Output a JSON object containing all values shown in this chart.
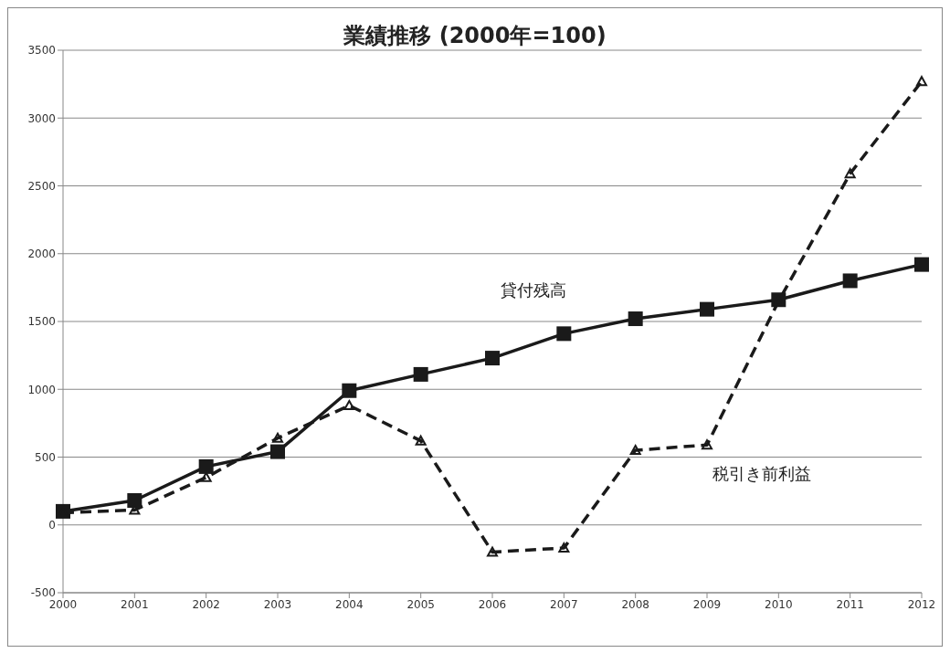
{
  "chart_data": {
    "type": "line",
    "title": "業績推移 (2000年=100)",
    "categories": [
      "2000",
      "2001",
      "2002",
      "2003",
      "2004",
      "2005",
      "2006",
      "2007",
      "2008",
      "2009",
      "2010",
      "2011",
      "2012"
    ],
    "series": [
      {
        "name": "貸付残高",
        "color": "#1a1a1a",
        "marker": "square",
        "line_style": "solid",
        "values": [
          100,
          180,
          430,
          540,
          990,
          1110,
          1230,
          1410,
          1520,
          1590,
          1660,
          1800,
          1920
        ]
      },
      {
        "name": "税引き前利益",
        "color": "#1a1a1a",
        "marker": "triangle",
        "line_style": "dashed",
        "values": [
          90,
          110,
          350,
          640,
          880,
          620,
          -200,
          -170,
          550,
          590,
          1650,
          2590,
          3270
        ]
      }
    ],
    "ylim": [
      -500,
      3500
    ],
    "yticks": [
      -500,
      0,
      500,
      1000,
      1500,
      2000,
      2500,
      3000,
      3500
    ],
    "grid": "y",
    "legend": false
  }
}
